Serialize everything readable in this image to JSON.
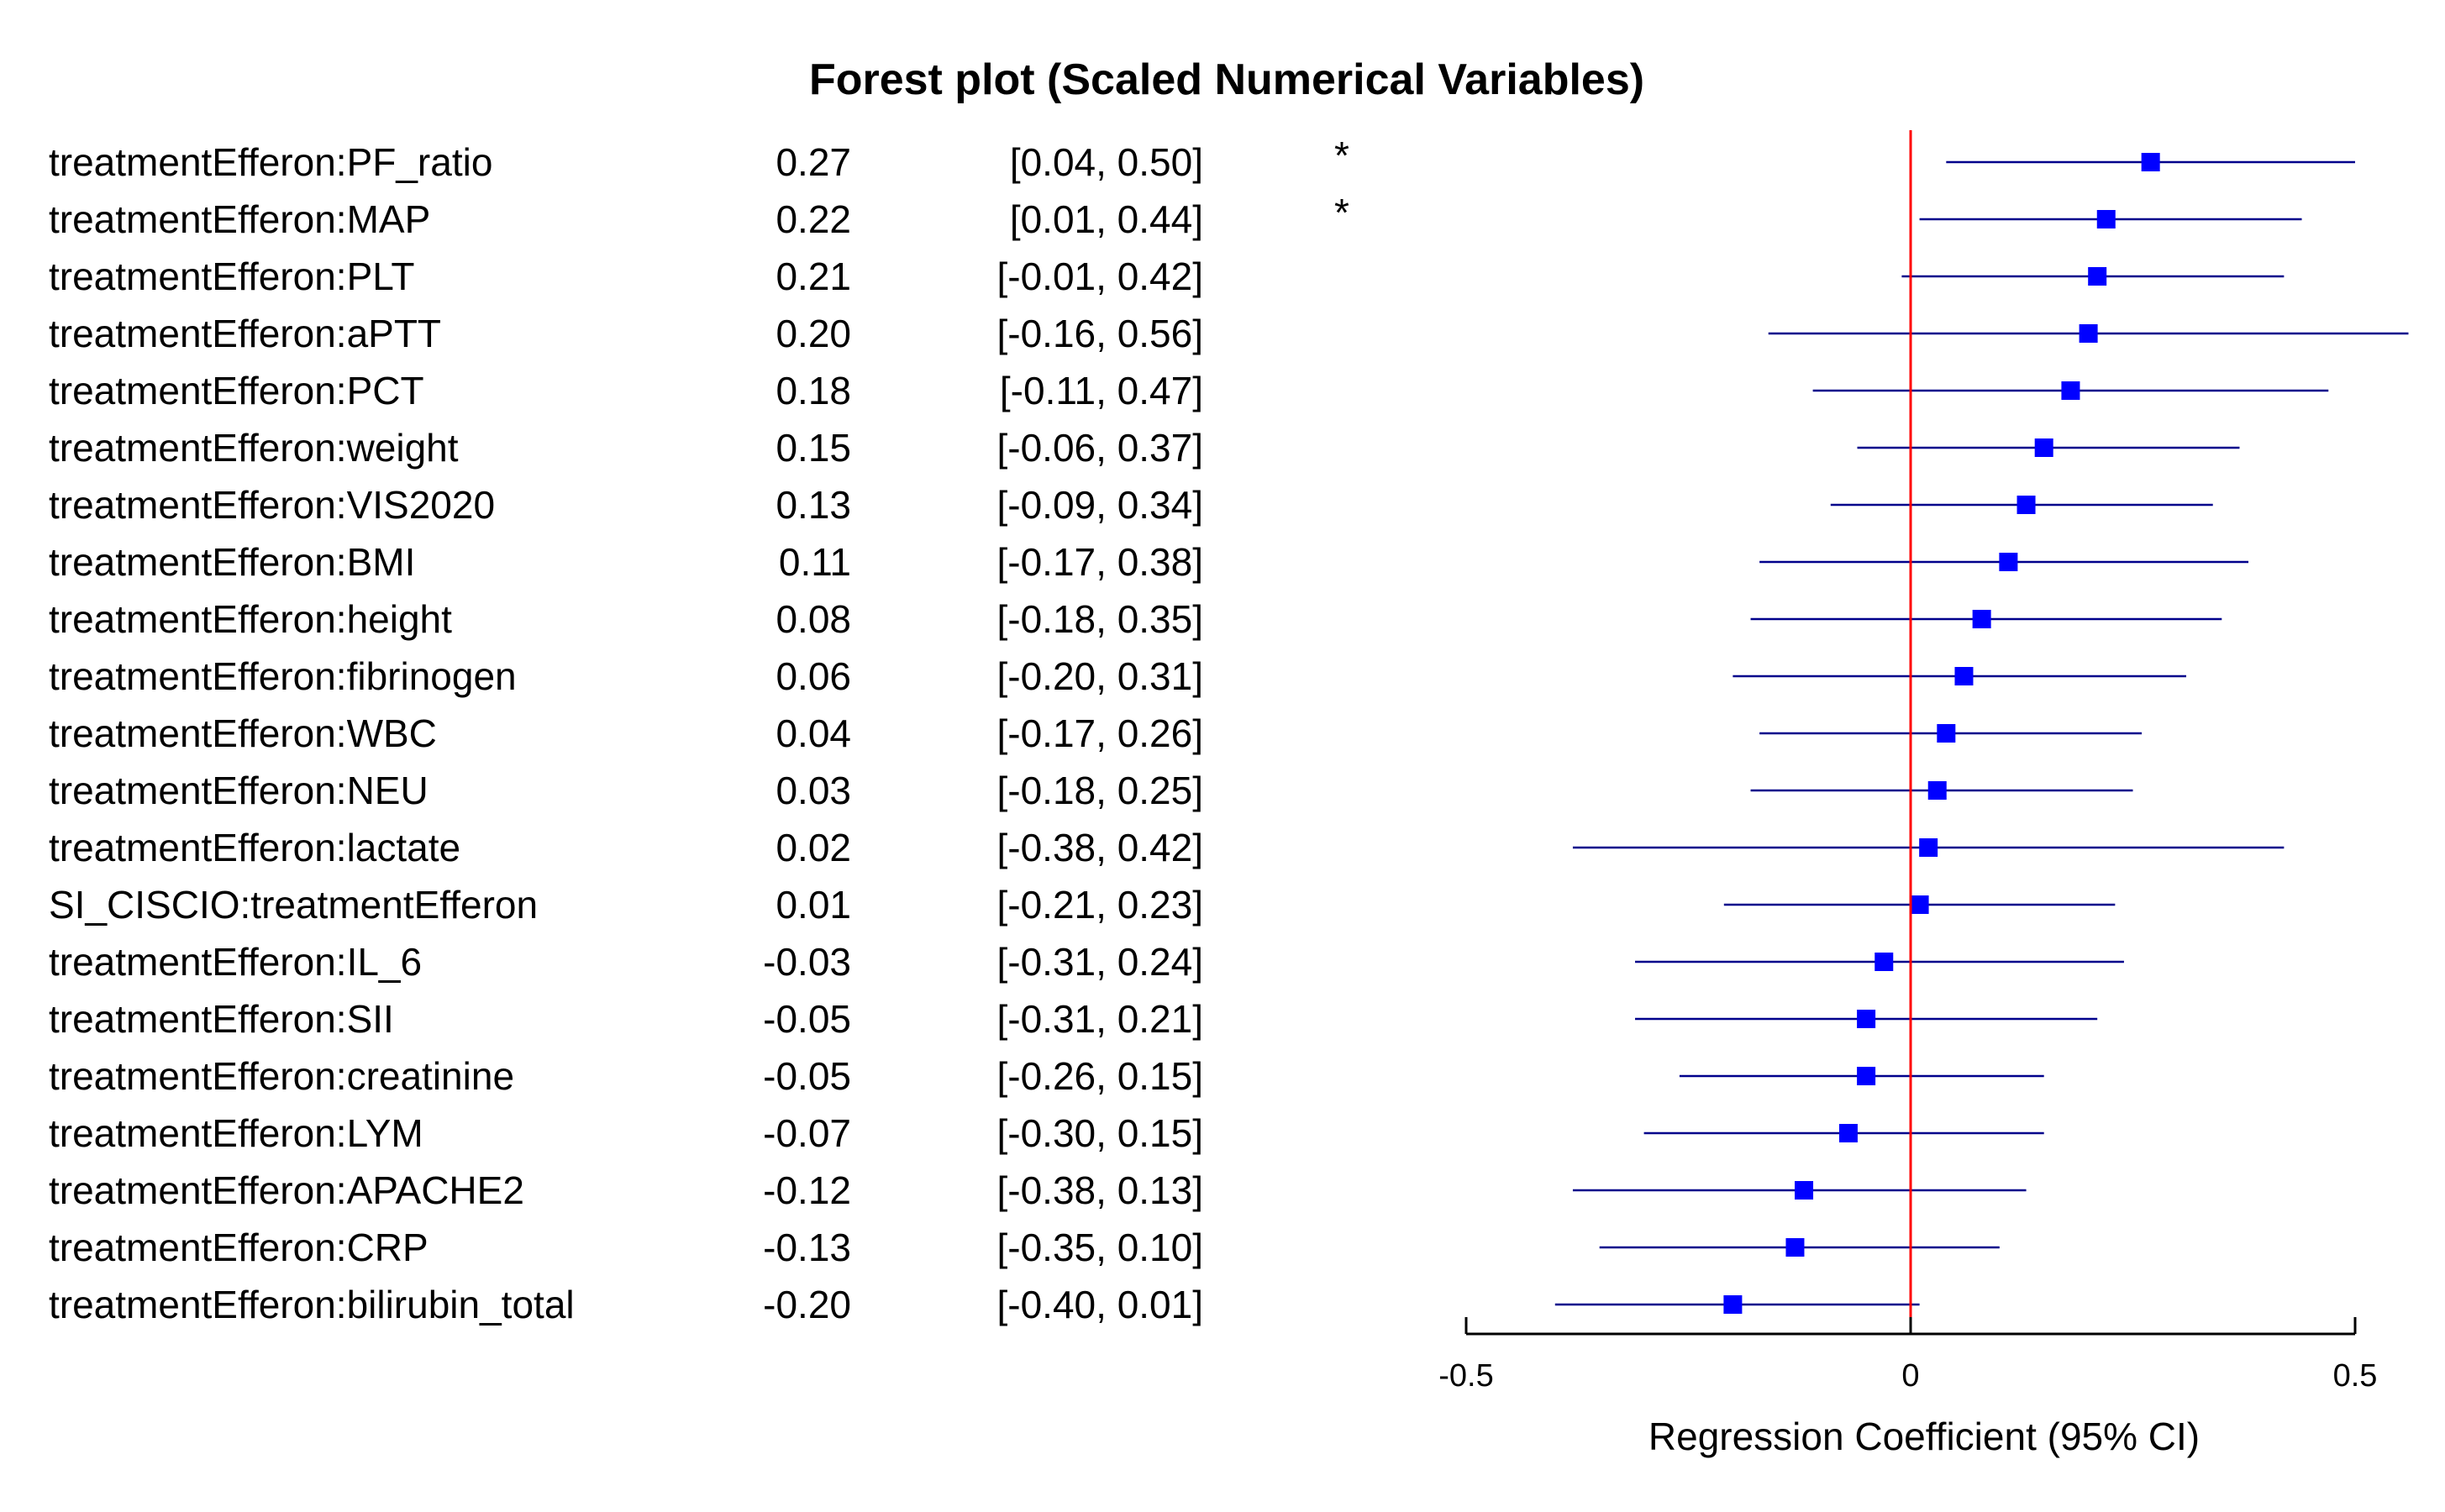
{
  "chart_data": {
    "type": "forest",
    "title": "Forest plot (Scaled Numerical Variables)",
    "xlabel": "Regression Coefficient (95% CI)",
    "xlim": [
      -0.5,
      0.5
    ],
    "xticks": [
      -0.5,
      0,
      0.5
    ],
    "xtick_labels": [
      "-0.5",
      "0",
      "0.5"
    ],
    "reference_line": 0,
    "colors": {
      "point": "#0000ff",
      "ci_line": "#00008b",
      "reference": "#ff0000",
      "axis": "#000000"
    },
    "rows": [
      {
        "label": "treatmentEfferon:PF_ratio",
        "estimate": 0.27,
        "lower": 0.04,
        "upper": 0.5,
        "estimate_text": "0.27",
        "ci_text": "[0.04, 0.50]",
        "sig": "*"
      },
      {
        "label": "treatmentEfferon:MAP",
        "estimate": 0.22,
        "lower": 0.01,
        "upper": 0.44,
        "estimate_text": "0.22",
        "ci_text": "[0.01, 0.44]",
        "sig": "*"
      },
      {
        "label": "treatmentEfferon:PLT",
        "estimate": 0.21,
        "lower": -0.01,
        "upper": 0.42,
        "estimate_text": "0.21",
        "ci_text": "[-0.01, 0.42]",
        "sig": ""
      },
      {
        "label": "treatmentEfferon:aPTT",
        "estimate": 0.2,
        "lower": -0.16,
        "upper": 0.56,
        "estimate_text": "0.20",
        "ci_text": "[-0.16, 0.56]",
        "sig": ""
      },
      {
        "label": "treatmentEfferon:PCT",
        "estimate": 0.18,
        "lower": -0.11,
        "upper": 0.47,
        "estimate_text": "0.18",
        "ci_text": "[-0.11, 0.47]",
        "sig": ""
      },
      {
        "label": "treatmentEfferon:weight",
        "estimate": 0.15,
        "lower": -0.06,
        "upper": 0.37,
        "estimate_text": "0.15",
        "ci_text": "[-0.06, 0.37]",
        "sig": ""
      },
      {
        "label": "treatmentEfferon:VIS2020",
        "estimate": 0.13,
        "lower": -0.09,
        "upper": 0.34,
        "estimate_text": "0.13",
        "ci_text": "[-0.09, 0.34]",
        "sig": ""
      },
      {
        "label": "treatmentEfferon:BMI",
        "estimate": 0.11,
        "lower": -0.17,
        "upper": 0.38,
        "estimate_text": "0.11",
        "ci_text": "[-0.17, 0.38]",
        "sig": ""
      },
      {
        "label": "treatmentEfferon:height",
        "estimate": 0.08,
        "lower": -0.18,
        "upper": 0.35,
        "estimate_text": "0.08",
        "ci_text": "[-0.18, 0.35]",
        "sig": ""
      },
      {
        "label": "treatmentEfferon:fibrinogen",
        "estimate": 0.06,
        "lower": -0.2,
        "upper": 0.31,
        "estimate_text": "0.06",
        "ci_text": "[-0.20, 0.31]",
        "sig": ""
      },
      {
        "label": "treatmentEfferon:WBC",
        "estimate": 0.04,
        "lower": -0.17,
        "upper": 0.26,
        "estimate_text": "0.04",
        "ci_text": "[-0.17, 0.26]",
        "sig": ""
      },
      {
        "label": "treatmentEfferon:NEU",
        "estimate": 0.03,
        "lower": -0.18,
        "upper": 0.25,
        "estimate_text": "0.03",
        "ci_text": "[-0.18, 0.25]",
        "sig": ""
      },
      {
        "label": "treatmentEfferon:lactate",
        "estimate": 0.02,
        "lower": -0.38,
        "upper": 0.42,
        "estimate_text": "0.02",
        "ci_text": "[-0.38, 0.42]",
        "sig": ""
      },
      {
        "label": "SI_CISCIO:treatmentEfferon",
        "estimate": 0.01,
        "lower": -0.21,
        "upper": 0.23,
        "estimate_text": "0.01",
        "ci_text": "[-0.21, 0.23]",
        "sig": ""
      },
      {
        "label": "treatmentEfferon:IL_6",
        "estimate": -0.03,
        "lower": -0.31,
        "upper": 0.24,
        "estimate_text": "-0.03",
        "ci_text": "[-0.31, 0.24]",
        "sig": ""
      },
      {
        "label": "treatmentEfferon:SII",
        "estimate": -0.05,
        "lower": -0.31,
        "upper": 0.21,
        "estimate_text": "-0.05",
        "ci_text": "[-0.31, 0.21]",
        "sig": ""
      },
      {
        "label": "treatmentEfferon:creatinine",
        "estimate": -0.05,
        "lower": -0.26,
        "upper": 0.15,
        "estimate_text": "-0.05",
        "ci_text": "[-0.26, 0.15]",
        "sig": ""
      },
      {
        "label": "treatmentEfferon:LYM",
        "estimate": -0.07,
        "lower": -0.3,
        "upper": 0.15,
        "estimate_text": "-0.07",
        "ci_text": "[-0.30, 0.15]",
        "sig": ""
      },
      {
        "label": "treatmentEfferon:APACHE2",
        "estimate": -0.12,
        "lower": -0.38,
        "upper": 0.13,
        "estimate_text": "-0.12",
        "ci_text": "[-0.38, 0.13]",
        "sig": ""
      },
      {
        "label": "treatmentEfferon:CRP",
        "estimate": -0.13,
        "lower": -0.35,
        "upper": 0.1,
        "estimate_text": "-0.13",
        "ci_text": "[-0.35, 0.10]",
        "sig": ""
      },
      {
        "label": "treatmentEfferon:bilirubin_total",
        "estimate": -0.2,
        "lower": -0.4,
        "upper": 0.01,
        "estimate_text": "-0.20",
        "ci_text": "[-0.40, 0.01]",
        "sig": ""
      }
    ]
  }
}
